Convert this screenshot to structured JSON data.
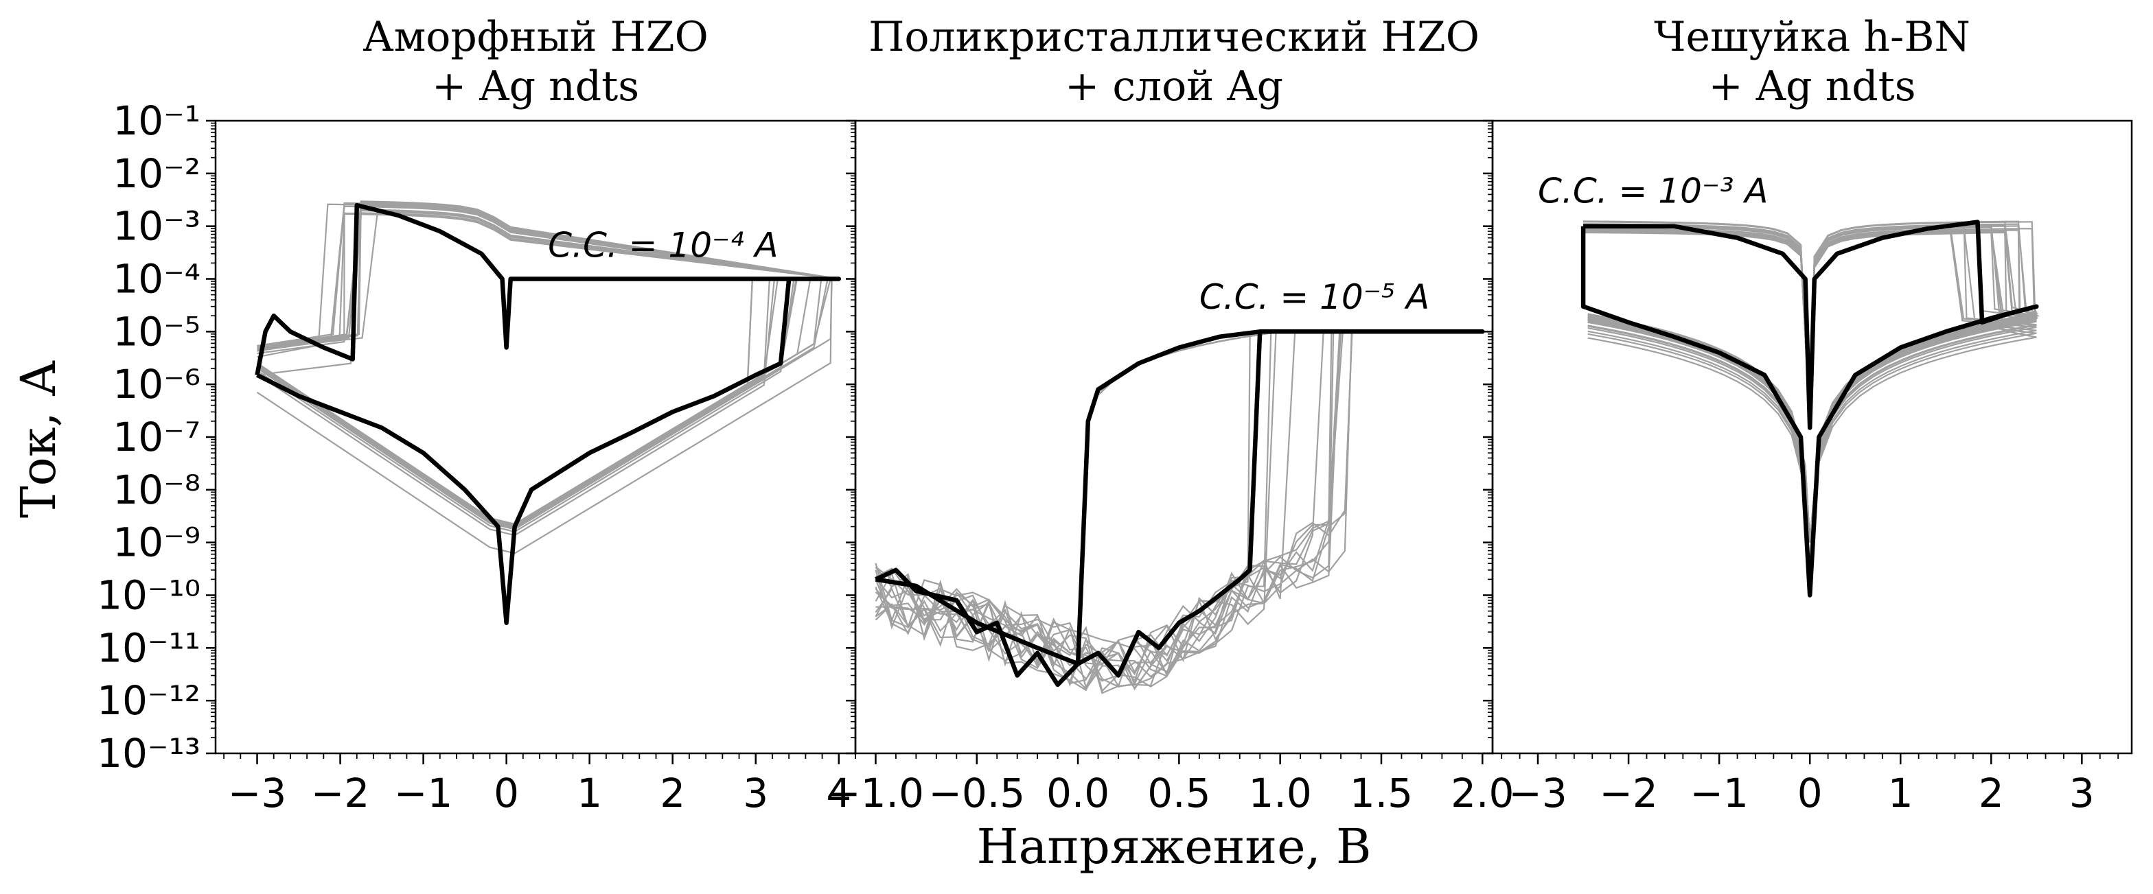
{
  "figure": {
    "ylabel": "Ток, А",
    "xlabel": "Напряжение, В"
  },
  "colors": {
    "gray": "#a0a0a0",
    "black": "#000000"
  },
  "chart_data": [
    {
      "type": "line",
      "title_line1": "Аморфный HZO",
      "title_line2": "+ Ag ndts",
      "annotation": "C.C. = 10⁻⁴ A",
      "x_ticks": [
        "−3",
        "−2",
        "−1",
        "0",
        "1",
        "2",
        "3",
        "4"
      ],
      "y_ticks": [
        "10⁻¹",
        "10⁻²",
        "10⁻³",
        "10⁻⁴",
        "10⁻⁵",
        "10⁻⁶",
        "10⁻⁷",
        "10⁻⁸",
        "10⁻⁹",
        "10⁻¹⁰",
        "10⁻¹¹",
        "10⁻¹²",
        "10⁻¹³"
      ],
      "xlim": [
        -3.5,
        4.2
      ],
      "ylim": [
        1e-13,
        0.1
      ],
      "yscale": "log",
      "series": [
        {
          "style": "black",
          "points": [
            [
              -3.0,
              1.5e-06
            ],
            [
              -2.5,
              6e-07
            ],
            [
              -2.0,
              3e-07
            ],
            [
              -1.5,
              1.5e-07
            ],
            [
              -1.0,
              5e-08
            ],
            [
              -0.5,
              1e-08
            ],
            [
              -0.1,
              2e-09
            ],
            [
              0.0,
              3e-11
            ],
            [
              0.1,
              2e-09
            ],
            [
              0.3,
              1e-08
            ],
            [
              0.6,
              2e-08
            ],
            [
              1.0,
              5e-08
            ],
            [
              1.5,
              1.2e-07
            ],
            [
              2.0,
              3e-07
            ],
            [
              2.5,
              6e-07
            ],
            [
              3.0,
              1.5e-06
            ],
            [
              3.3,
              2.5e-06
            ],
            [
              3.4,
              0.0001
            ],
            [
              4.0,
              0.0001
            ],
            [
              0.05,
              0.0001
            ],
            [
              0.0,
              5e-06
            ],
            [
              -0.05,
              0.0001
            ],
            [
              -0.3,
              0.0003
            ],
            [
              -0.8,
              0.0008
            ],
            [
              -1.3,
              0.0016
            ],
            [
              -1.8,
              0.0025
            ],
            [
              -1.85,
              3e-06
            ],
            [
              -2.2,
              5e-06
            ],
            [
              -2.6,
              1e-05
            ],
            [
              -2.8,
              2e-05
            ],
            [
              -2.9,
              1e-05
            ],
            [
              -3.0,
              1.5e-06
            ]
          ]
        }
      ]
    },
    {
      "type": "line",
      "title_line1": "Поликристаллический HZO",
      "title_line2": "+ слой Ag",
      "annotation": "C.C. = 10⁻⁵ A",
      "x_ticks": [
        "−1.0",
        "−0.5",
        "0.0",
        "0.5",
        "1.0",
        "1.5",
        "2.0"
      ],
      "xlim": [
        -1.1,
        2.05
      ],
      "ylim": [
        1e-13,
        0.1
      ],
      "yscale": "log",
      "series": [
        {
          "style": "black",
          "points": [
            [
              -1.0,
              2e-10
            ],
            [
              -0.9,
              3e-10
            ],
            [
              -0.8,
              1.2e-10
            ],
            [
              -0.6,
              8e-11
            ],
            [
              -0.5,
              2e-11
            ],
            [
              -0.4,
              3e-11
            ],
            [
              -0.3,
              3e-12
            ],
            [
              -0.2,
              8e-12
            ],
            [
              -0.1,
              2e-12
            ],
            [
              0.0,
              5e-12
            ],
            [
              0.1,
              8e-12
            ],
            [
              0.2,
              3e-12
            ],
            [
              0.3,
              2e-11
            ],
            [
              0.4,
              1e-11
            ],
            [
              0.5,
              3e-11
            ],
            [
              0.6,
              5e-11
            ],
            [
              0.7,
              1e-10
            ],
            [
              0.8,
              2e-10
            ],
            [
              0.85,
              3e-10
            ],
            [
              0.9,
              1e-05
            ],
            [
              2.0,
              1e-05
            ],
            [
              0.9,
              1e-05
            ],
            [
              0.7,
              8e-06
            ],
            [
              0.5,
              5e-06
            ],
            [
              0.3,
              2.5e-06
            ],
            [
              0.1,
              8e-07
            ],
            [
              0.05,
              2e-07
            ],
            [
              0.0,
              5e-12
            ],
            [
              -0.2,
              1e-11
            ],
            [
              -0.5,
              3e-11
            ],
            [
              -0.8,
              1.5e-10
            ],
            [
              -1.0,
              2e-10
            ]
          ]
        }
      ]
    },
    {
      "type": "line",
      "title_line1": "Чешуйка h-BN",
      "title_line2": "+ Ag ndts",
      "annotation": "C.C. = 10⁻³ A",
      "x_ticks": [
        "−3",
        "−2",
        "−1",
        "0",
        "1",
        "2",
        "3"
      ],
      "xlim": [
        -3.5,
        3.55
      ],
      "ylim": [
        1e-13,
        0.1
      ],
      "yscale": "log",
      "series": [
        {
          "style": "black",
          "points": [
            [
              -2.5,
              0.001
            ],
            [
              -1.5,
              0.001
            ],
            [
              -0.8,
              0.0006
            ],
            [
              -0.3,
              0.0003
            ],
            [
              -0.05,
              0.0001
            ],
            [
              0.0,
              1.5e-07
            ],
            [
              0.05,
              0.0001
            ],
            [
              0.3,
              0.0003
            ],
            [
              0.8,
              0.0006
            ],
            [
              1.3,
              0.0009
            ],
            [
              1.85,
              0.0012
            ],
            [
              1.9,
              1.5e-05
            ],
            [
              2.2,
              2.2e-05
            ],
            [
              2.5,
              3e-05
            ],
            [
              2.0,
              1.8e-05
            ],
            [
              1.5,
              1e-05
            ],
            [
              1.0,
              5e-06
            ],
            [
              0.5,
              1.5e-06
            ],
            [
              0.1,
              1e-07
            ],
            [
              0.0,
              1e-10
            ],
            [
              -0.1,
              1e-07
            ],
            [
              -0.5,
              1.5e-06
            ],
            [
              -1.0,
              4e-06
            ],
            [
              -1.5,
              8e-06
            ],
            [
              -2.0,
              1.5e-05
            ],
            [
              -2.5,
              3e-05
            ],
            [
              -2.5,
              0.001
            ]
          ]
        }
      ]
    }
  ]
}
